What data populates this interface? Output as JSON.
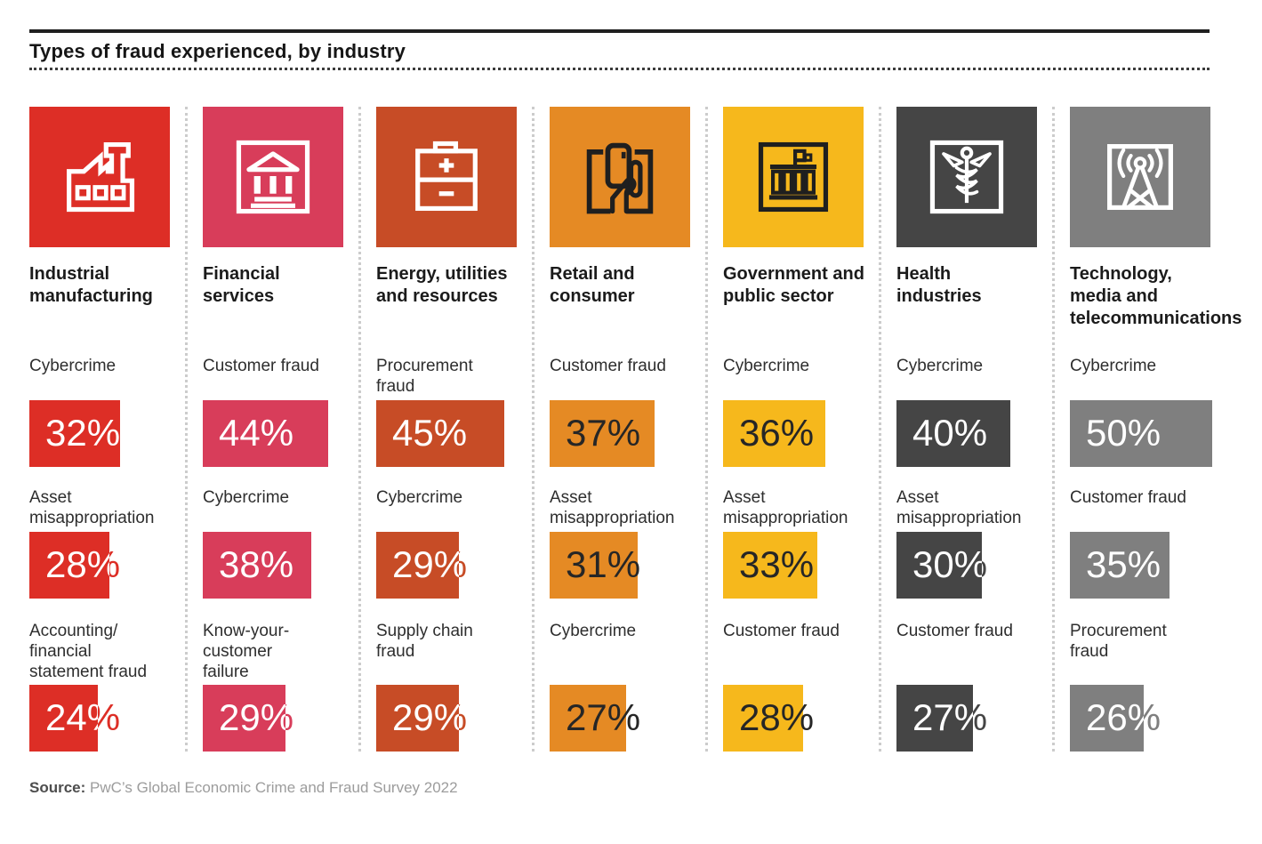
{
  "title": "Types of fraud experienced, by industry",
  "source": {
    "label": "Source:",
    "text": "PwC’s Global Economic Crime and Fraud Survey 2022"
  },
  "chart_data": {
    "type": "bar",
    "title": "Types of fraud experienced, by industry",
    "unit": "%",
    "orientation": "horizontal-proportional-boxes",
    "groups": [
      {
        "name": "Industrial\nmanufacturing",
        "icon": "factory-icon",
        "color": "#dd2e26",
        "icon_color": "#ffffff",
        "number_color": "#ffffff",
        "number_overflow_color": "#dd2e26",
        "frauds": [
          {
            "label": "Cybercrime",
            "value": 32,
            "display": "32%"
          },
          {
            "label": "Asset\nmisappropriation",
            "value": 28,
            "display": "28%"
          },
          {
            "label": "Accounting/\nfinancial\nstatement fraud",
            "value": 24,
            "display": "24%"
          }
        ]
      },
      {
        "name": "Financial\nservices",
        "icon": "bank-icon",
        "color": "#d83d5a",
        "icon_color": "#ffffff",
        "number_color": "#ffffff",
        "number_overflow_color": "#d83d5a",
        "frauds": [
          {
            "label": "Customer fraud",
            "value": 44,
            "display": "44%"
          },
          {
            "label": "Cybercrime",
            "value": 38,
            "display": "38%"
          },
          {
            "label": "Know-your-\ncustomer\nfailure",
            "value": 29,
            "display": "29%"
          }
        ]
      },
      {
        "name": "Energy, utilities\nand resources",
        "icon": "battery-icon",
        "color": "#c74c26",
        "icon_color": "#ffffff",
        "number_color": "#ffffff",
        "number_overflow_color": "#c74c26",
        "frauds": [
          {
            "label": "Procurement\nfraud",
            "value": 45,
            "display": "45%"
          },
          {
            "label": "Cybercrime",
            "value": 29,
            "display": "29%"
          },
          {
            "label": "Supply chain\nfraud",
            "value": 29,
            "display": "29%"
          }
        ]
      },
      {
        "name": "Retail and\nconsumer",
        "icon": "credit-card-hand-icon",
        "color": "#e58a24",
        "icon_color": "#1f1f1f",
        "number_color": "#262626",
        "number_overflow_color": "#262626",
        "frauds": [
          {
            "label": "Customer fraud",
            "value": 37,
            "display": "37%"
          },
          {
            "label": "Asset\nmisappropriation",
            "value": 31,
            "display": "31%"
          },
          {
            "label": "Cybercrime",
            "value": 27,
            "display": "27%"
          }
        ]
      },
      {
        "name": "Government and\npublic sector",
        "icon": "government-building-icon",
        "color": "#f6b81c",
        "icon_color": "#1f1f1f",
        "number_color": "#262626",
        "number_overflow_color": "#262626",
        "frauds": [
          {
            "label": "Cybercrime",
            "value": 36,
            "display": "36%"
          },
          {
            "label": "Asset\nmisappropriation",
            "value": 33,
            "display": "33%"
          },
          {
            "label": "Customer fraud",
            "value": 28,
            "display": "28%"
          }
        ]
      },
      {
        "name": "Health\nindustries",
        "icon": "caduceus-icon",
        "color": "#454545",
        "icon_color": "#ffffff",
        "number_color": "#ffffff",
        "number_overflow_color": "#454545",
        "frauds": [
          {
            "label": "Cybercrime",
            "value": 40,
            "display": "40%"
          },
          {
            "label": "Asset\nmisappropriation",
            "value": 30,
            "display": "30%"
          },
          {
            "label": "Customer fraud",
            "value": 27,
            "display": "27%"
          }
        ]
      },
      {
        "name": "Technology,\nmedia and\ntelecommunications",
        "icon": "radio-tower-icon",
        "color": "#7f7f7f",
        "icon_color": "#ffffff",
        "number_color": "#ffffff",
        "number_overflow_color": "#7f7f7f",
        "frauds": [
          {
            "label": "Cybercrime",
            "value": 50,
            "display": "50%"
          },
          {
            "label": "Customer fraud",
            "value": 35,
            "display": "35%"
          },
          {
            "label": "Procurement\nfraud",
            "value": 26,
            "display": "26%"
          }
        ]
      }
    ],
    "source": "PwC’s Global Economic Crime and Fraud Survey 2022"
  }
}
